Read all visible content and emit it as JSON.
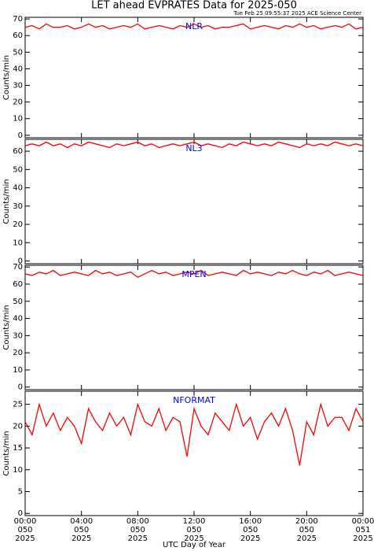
{
  "title": "LET ahead EVPRATES Data for 2025-050",
  "timestamp": "Tue Feb 25 09:55:37 2025 ACE Science Center",
  "chart_data": [
    {
      "type": "line",
      "ylabel": "Counts/min",
      "label_color": "#0000ff",
      "x": [
        0,
        0.5,
        1,
        1.5,
        2,
        2.5,
        3,
        3.5,
        4,
        4.5,
        5,
        5.5,
        6,
        6.5,
        7,
        7.5,
        8,
        8.5,
        9,
        9.5,
        10,
        10.5,
        11,
        11.5,
        12,
        12.5,
        13,
        13.5,
        14,
        14.5,
        15,
        15.5,
        16,
        16.5,
        17,
        17.5,
        18,
        18.5,
        19,
        19.5,
        20,
        20.5,
        21,
        21.5,
        22,
        22.5,
        23,
        23.5,
        24
      ],
      "xlim": [
        0,
        24
      ],
      "ylim": [
        -1.5,
        71
      ],
      "yticks": [
        0,
        10,
        20,
        30,
        40,
        50,
        60,
        70
      ],
      "series": [
        {
          "name": "NLR",
          "color": "#ff0000",
          "values": [
            65,
            66,
            64,
            67,
            65,
            65,
            66,
            64,
            65,
            67,
            65,
            66,
            64,
            65,
            66,
            65,
            67,
            64,
            65,
            66,
            65,
            64,
            66,
            65,
            67,
            65,
            66,
            64,
            65,
            65,
            66,
            67,
            64,
            65,
            66,
            65,
            64,
            66,
            65,
            67,
            65,
            66,
            64,
            65,
            66,
            65,
            67,
            64,
            65
          ]
        }
      ]
    },
    {
      "type": "line",
      "ylabel": "Counts/min",
      "label_color": "#0000ff",
      "x": [
        0,
        0.5,
        1,
        1.5,
        2,
        2.5,
        3,
        3.5,
        4,
        4.5,
        5,
        5.5,
        6,
        6.5,
        7,
        7.5,
        8,
        8.5,
        9,
        9.5,
        10,
        10.5,
        11,
        11.5,
        12,
        12.5,
        13,
        13.5,
        14,
        14.5,
        15,
        15.5,
        16,
        16.5,
        17,
        17.5,
        18,
        18.5,
        19,
        19.5,
        20,
        20.5,
        21,
        21.5,
        22,
        22.5,
        23,
        23.5,
        24
      ],
      "xlim": [
        0,
        24
      ],
      "ylim": [
        -1.5,
        66.5
      ],
      "yticks": [
        0,
        10,
        20,
        30,
        40,
        50,
        60
      ],
      "series": [
        {
          "name": "NL3",
          "color": "#ff0000",
          "values": [
            63,
            64,
            63,
            65,
            63,
            64,
            62,
            64,
            63,
            65,
            64,
            63,
            62,
            64,
            63,
            64,
            65,
            63,
            64,
            62,
            63,
            64,
            63,
            64,
            65,
            63,
            64,
            63,
            62,
            64,
            63,
            65,
            64,
            63,
            64,
            63,
            65,
            64,
            63,
            62,
            64,
            63,
            64,
            63,
            65,
            64,
            63,
            64,
            63
          ]
        }
      ]
    },
    {
      "type": "line",
      "ylabel": "Counts/min",
      "label_color": "#0000ff",
      "x": [
        0,
        0.5,
        1,
        1.5,
        2,
        2.5,
        3,
        3.5,
        4,
        4.5,
        5,
        5.5,
        6,
        6.5,
        7,
        7.5,
        8,
        8.5,
        9,
        9.5,
        10,
        10.5,
        11,
        11.5,
        12,
        12.5,
        13,
        13.5,
        14,
        14.5,
        15,
        15.5,
        16,
        16.5,
        17,
        17.5,
        18,
        18.5,
        19,
        19.5,
        20,
        20.5,
        21,
        21.5,
        22,
        22.5,
        23,
        23.5,
        24
      ],
      "xlim": [
        0,
        24
      ],
      "ylim": [
        -1.5,
        71
      ],
      "yticks": [
        0,
        10,
        20,
        30,
        40,
        50,
        60,
        70
      ],
      "series": [
        {
          "name": "MPEN",
          "color": "#ff0000",
          "values": [
            66,
            65,
            67,
            66,
            68,
            65,
            66,
            67,
            66,
            65,
            68,
            66,
            67,
            65,
            66,
            67,
            64,
            66,
            68,
            66,
            67,
            65,
            66,
            67,
            66,
            68,
            65,
            66,
            67,
            66,
            65,
            68,
            66,
            67,
            66,
            65,
            67,
            66,
            68,
            66,
            65,
            67,
            66,
            68,
            65,
            66,
            67,
            66,
            65
          ]
        }
      ]
    },
    {
      "type": "line",
      "ylabel": "Counts/min",
      "label_color": "#0000ff",
      "xlabel": "UTC Day of Year",
      "x": [
        0,
        0.5,
        1,
        1.5,
        2,
        2.5,
        3,
        3.5,
        4,
        4.5,
        5,
        5.5,
        6,
        6.5,
        7,
        7.5,
        8,
        8.5,
        9,
        9.5,
        10,
        10.5,
        11,
        11.5,
        12,
        12.5,
        13,
        13.5,
        14,
        14.5,
        15,
        15.5,
        16,
        16.5,
        17,
        17.5,
        18,
        18.5,
        19,
        19.5,
        20,
        20.5,
        21,
        21.5,
        22,
        22.5,
        23,
        23.5,
        24
      ],
      "xlim": [
        0,
        24
      ],
      "xticks": [
        {
          "value": 0,
          "label": [
            "00:00",
            "050",
            "2025"
          ]
        },
        {
          "value": 4,
          "label": [
            "04:00",
            "050",
            "2025"
          ]
        },
        {
          "value": 8,
          "label": [
            "08:00",
            "050",
            "2025"
          ]
        },
        {
          "value": 12,
          "label": [
            "12:00",
            "050",
            "2025"
          ]
        },
        {
          "value": 16,
          "label": [
            "16:00",
            "050",
            "2025"
          ]
        },
        {
          "value": 20,
          "label": [
            "20:00",
            "050",
            "2025"
          ]
        },
        {
          "value": 24,
          "label": [
            "00:00",
            "051",
            "2025"
          ]
        }
      ],
      "ylim": [
        -0.5,
        28
      ],
      "yticks": [
        0,
        5,
        10,
        15,
        20,
        25
      ],
      "series": [
        {
          "name": "NFORMAT",
          "color": "#ff0000",
          "values": [
            21,
            18,
            25,
            20,
            23,
            19,
            22,
            20,
            16,
            24,
            21,
            19,
            23,
            20,
            22,
            18,
            25,
            21,
            20,
            24,
            19,
            22,
            21,
            13,
            24,
            20,
            18,
            23,
            21,
            19,
            25,
            20,
            22,
            17,
            21,
            23,
            20,
            24,
            19,
            11,
            21,
            18,
            25,
            20,
            22,
            22,
            19,
            24,
            21
          ]
        }
      ]
    }
  ]
}
